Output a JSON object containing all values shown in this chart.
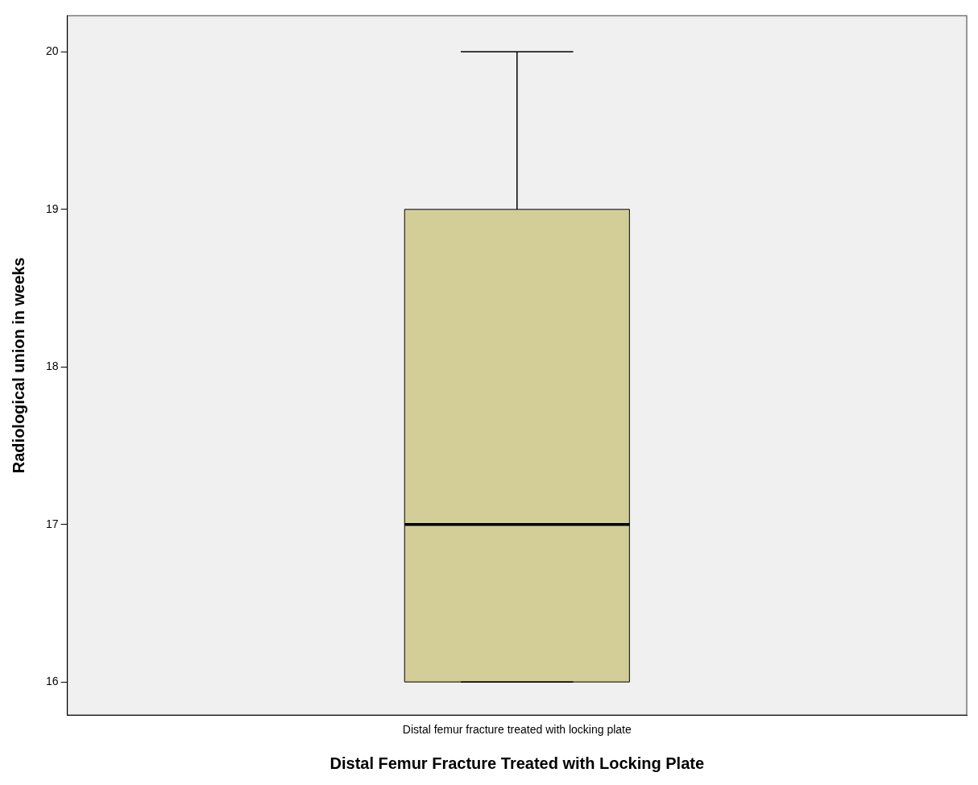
{
  "chart_data": {
    "type": "box",
    "xlabel": "Distal Femur Fracture Treated with Locking Plate",
    "ylabel": "Radiological union in weeks",
    "categories": [
      "Distal femur fracture treated with locking plate"
    ],
    "boxes": [
      {
        "low": 16,
        "q1": 16,
        "median": 17,
        "q3": 19,
        "high": 20
      }
    ],
    "color": "#d3ce97",
    "ylim": [
      15.79,
      20.23
    ],
    "yticks": [
      16,
      17,
      18,
      19,
      20
    ],
    "grid": false,
    "legend": false
  }
}
